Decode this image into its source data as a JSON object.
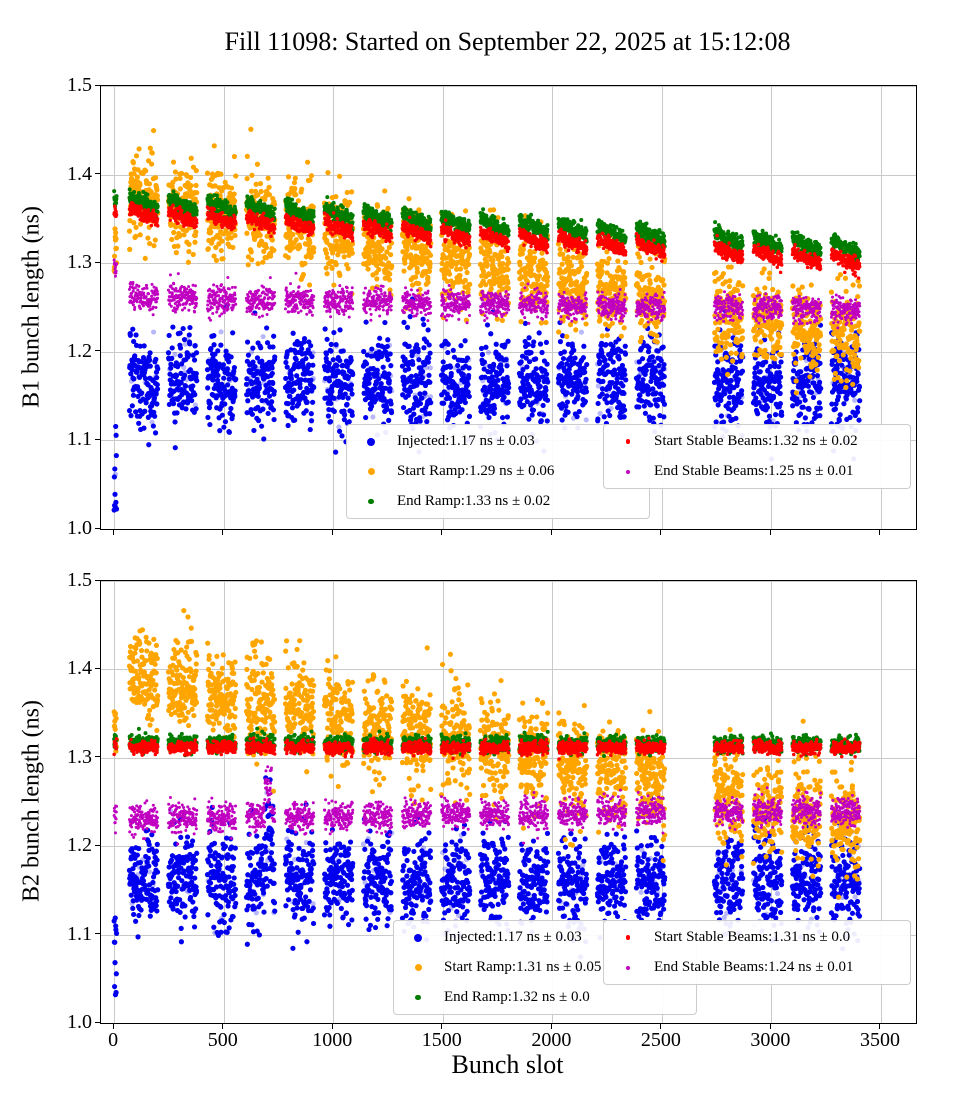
{
  "figure": {
    "title": "Fill 11098: Started on September 22, 2025 at 15:12:08",
    "xlabel": "Bunch slot"
  },
  "bunch_pattern": {
    "probe_slots": [
      0,
      12
    ],
    "first_train_slot": 70,
    "n_trains": 19,
    "train_length": 130,
    "train_pitch": 178,
    "skip_trains": [
      14
    ]
  },
  "chart_data": [
    {
      "type": "scatter",
      "beam": "B1",
      "ylabel": "B1 bunch length (ns)",
      "xlabel": "Bunch slot",
      "xlim": [
        -60,
        3660
      ],
      "ylim": [
        1.0,
        1.5
      ],
      "xticks": [
        0,
        500,
        1000,
        1500,
        2000,
        2500,
        3000,
        3500
      ],
      "xticklabels": [
        "0",
        "500",
        "1000",
        "1500",
        "2000",
        "2500",
        "3000",
        "3500"
      ],
      "yticks": [
        1.0,
        1.1,
        1.2,
        1.3,
        1.4,
        1.5
      ],
      "yticklabels": [
        "1.0",
        "1.1",
        "1.2",
        "1.3",
        "1.4",
        "1.5"
      ],
      "grid": true,
      "legend_position": "lower right",
      "series": [
        {
          "name": "Injected",
          "label": "Injected:1.17 ns ± 0.03",
          "mean_ns": 1.17,
          "std_ns": 0.03,
          "color": "#0000ee",
          "marker_radius": 2.6,
          "legend_marker_px": 8,
          "profile": {
            "start": 1.168,
            "end": 1.165,
            "sigma": 0.027,
            "probe": {
              "min": 1.01,
              "max": 1.13
            },
            "faint": 0.06
          }
        },
        {
          "name": "Start Ramp",
          "label": "Start Ramp:1.29 ns ± 0.06",
          "mean_ns": 1.29,
          "std_ns": 0.06,
          "color": "#ffa500",
          "marker_radius": 2.6,
          "legend_marker_px": 7,
          "profile": {
            "start": 1.38,
            "end": 1.212,
            "sigma": 0.024,
            "probe": {
              "min": 1.29,
              "max": 1.34
            }
          }
        },
        {
          "name": "End Ramp",
          "label": "End Ramp:1.33 ns ± 0.02",
          "mean_ns": 1.33,
          "std_ns": 0.02,
          "color": "#007d00",
          "marker_radius": 2.0,
          "legend_marker_px": 5.5,
          "profile": {
            "start": 1.371,
            "end": 1.316,
            "sigma": 0.0045,
            "train_tilt": 0.013
          }
        },
        {
          "name": "Start Stable Beams",
          "label": "Start Stable Beams:1.32 ns ± 0.02",
          "mean_ns": 1.32,
          "std_ns": 0.02,
          "color": "#ff0000",
          "marker_radius": 1.75,
          "legend_marker_px": 4.5,
          "profile": {
            "start": 1.357,
            "end": 1.301,
            "sigma": 0.004,
            "train_tilt": 0.012
          }
        },
        {
          "name": "End Stable Beams",
          "label": "End Stable Beams:1.25 ns ± 0.01",
          "mean_ns": 1.25,
          "std_ns": 0.01,
          "color": "#c000c0",
          "marker_radius": 1.5,
          "legend_marker_px": 4,
          "profile": {
            "start": 1.262,
            "end": 1.247,
            "sigma": 0.0075,
            "probe": {
              "min": 1.285,
              "max": 1.305
            }
          }
        }
      ]
    },
    {
      "type": "scatter",
      "beam": "B2",
      "ylabel": "B2 bunch length (ns)",
      "xlabel": "Bunch slot",
      "xlim": [
        -60,
        3660
      ],
      "ylim": [
        1.0,
        1.5
      ],
      "xticks": [
        0,
        500,
        1000,
        1500,
        2000,
        2500,
        3000,
        3500
      ],
      "xticklabels": [
        "0",
        "500",
        "1000",
        "1500",
        "2000",
        "2500",
        "3000",
        "3500"
      ],
      "yticks": [
        1.0,
        1.1,
        1.2,
        1.3,
        1.4,
        1.5
      ],
      "yticklabels": [
        "1.0",
        "1.1",
        "1.2",
        "1.3",
        "1.4",
        "1.5"
      ],
      "grid": true,
      "legend_position": "lower right",
      "series": [
        {
          "name": "Injected",
          "label": "Injected:1.17 ns ± 0.03",
          "mean_ns": 1.17,
          "std_ns": 0.03,
          "color": "#0000ee",
          "marker_radius": 2.6,
          "legend_marker_px": 8,
          "profile": {
            "start": 1.163,
            "end": 1.158,
            "sigma": 0.026,
            "probe": {
              "min": 1.03,
              "max": 1.12
            },
            "faint": 0.06,
            "spike": {
              "from": 688,
              "to": 724,
              "add": 0.075
            }
          }
        },
        {
          "name": "Start Ramp",
          "label": "Start Ramp:1.31 ns ± 0.05",
          "mean_ns": 1.31,
          "std_ns": 0.05,
          "color": "#ffa500",
          "marker_radius": 2.6,
          "legend_marker_px": 7,
          "profile": {
            "start": 1.398,
            "end": 1.222,
            "sigma": 0.028,
            "probe": {
              "min": 1.3,
              "max": 1.36
            }
          }
        },
        {
          "name": "End Ramp",
          "label": "End Ramp:1.32 ns ± 0.0",
          "mean_ns": 1.32,
          "std_ns": 0.0,
          "color": "#007d00",
          "marker_radius": 2.0,
          "legend_marker_px": 5.5,
          "profile": {
            "start": 1.317,
            "end": 1.315,
            "sigma": 0.0045
          }
        },
        {
          "name": "Start Stable Beams",
          "label": "Start Stable Beams:1.31 ns ± 0.0",
          "mean_ns": 1.31,
          "std_ns": 0.0,
          "color": "#ff0000",
          "marker_radius": 1.75,
          "legend_marker_px": 4.5,
          "profile": {
            "start": 1.312,
            "end": 1.311,
            "sigma": 0.0035
          }
        },
        {
          "name": "End Stable Beams",
          "label": "End Stable Beams:1.24 ns ± 0.01",
          "mean_ns": 1.24,
          "std_ns": 0.01,
          "color": "#c000c0",
          "marker_radius": 1.5,
          "legend_marker_px": 4,
          "profile": {
            "start": 1.231,
            "end": 1.241,
            "sigma": 0.008,
            "spike": {
              "from": 688,
              "to": 718,
              "add": 0.045
            }
          }
        }
      ]
    }
  ]
}
